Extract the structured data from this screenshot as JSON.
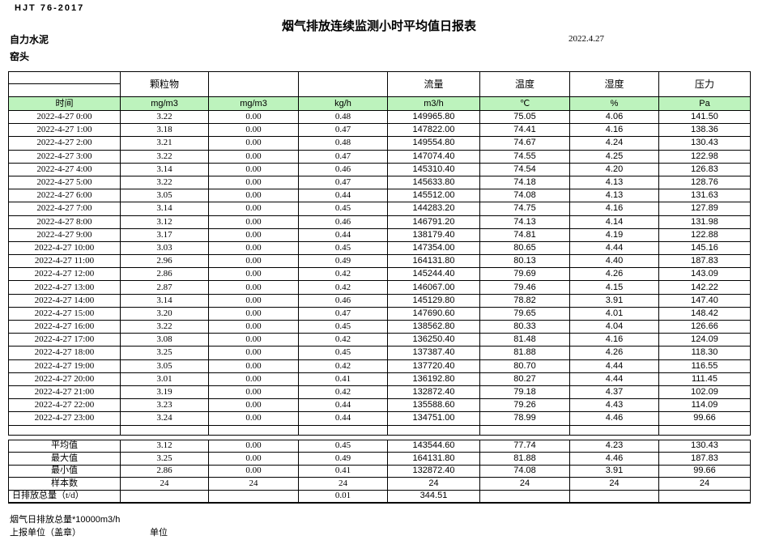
{
  "page": {
    "doc_code": "HJT 76-2017",
    "title": "烟气排放连续监测小时平均值日报表",
    "company": "自力水泥",
    "monitoring_point": "窑头",
    "date": "2022.4.27"
  },
  "colors": {
    "header_green": "#bdf3bd"
  },
  "table": {
    "group_headers": [
      "",
      "颗粒物",
      "",
      "",
      "流量",
      "温度",
      "湿度",
      "压力"
    ],
    "unit_headers": [
      "时间",
      "mg/m3",
      "mg/m3",
      "kg/h",
      "m3/h",
      "℃",
      "%",
      "Pa"
    ],
    "rows": [
      [
        "2022-4-27 0:00",
        "3.22",
        "0.00",
        "0.48",
        "149965.80",
        "75.05",
        "4.06",
        "141.50"
      ],
      [
        "2022-4-27 1:00",
        "3.18",
        "0.00",
        "0.47",
        "147822.00",
        "74.41",
        "4.16",
        "138.36"
      ],
      [
        "2022-4-27 2:00",
        "3.21",
        "0.00",
        "0.48",
        "149554.80",
        "74.67",
        "4.24",
        "130.43"
      ],
      [
        "2022-4-27 3:00",
        "3.22",
        "0.00",
        "0.47",
        "147074.40",
        "74.55",
        "4.25",
        "122.98"
      ],
      [
        "2022-4-27 4:00",
        "3.14",
        "0.00",
        "0.46",
        "145310.40",
        "74.54",
        "4.20",
        "126.83"
      ],
      [
        "2022-4-27 5:00",
        "3.22",
        "0.00",
        "0.47",
        "145633.80",
        "74.18",
        "4.13",
        "128.76"
      ],
      [
        "2022-4-27 6:00",
        "3.05",
        "0.00",
        "0.44",
        "145512.00",
        "74.08",
        "4.13",
        "131.63"
      ],
      [
        "2022-4-27 7:00",
        "3.14",
        "0.00",
        "0.45",
        "144283.20",
        "74.75",
        "4.16",
        "127.89"
      ],
      [
        "2022-4-27 8:00",
        "3.12",
        "0.00",
        "0.46",
        "146791.20",
        "74.13",
        "4.14",
        "131.98"
      ],
      [
        "2022-4-27 9:00",
        "3.17",
        "0.00",
        "0.44",
        "138179.40",
        "74.81",
        "4.19",
        "122.88"
      ],
      [
        "2022-4-27 10:00",
        "3.03",
        "0.00",
        "0.45",
        "147354.00",
        "80.65",
        "4.44",
        "145.16"
      ],
      [
        "2022-4-27 11:00",
        "2.96",
        "0.00",
        "0.49",
        "164131.80",
        "80.13",
        "4.40",
        "187.83"
      ],
      [
        "2022-4-27 12:00",
        "2.86",
        "0.00",
        "0.42",
        "145244.40",
        "79.69",
        "4.26",
        "143.09"
      ],
      [
        "2022-4-27 13:00",
        "2.87",
        "0.00",
        "0.42",
        "146067.00",
        "79.46",
        "4.15",
        "142.22"
      ],
      [
        "2022-4-27 14:00",
        "3.14",
        "0.00",
        "0.46",
        "145129.80",
        "78.82",
        "3.91",
        "147.40"
      ],
      [
        "2022-4-27 15:00",
        "3.20",
        "0.00",
        "0.47",
        "147690.60",
        "79.65",
        "4.01",
        "148.42"
      ],
      [
        "2022-4-27 16:00",
        "3.22",
        "0.00",
        "0.45",
        "138562.80",
        "80.33",
        "4.04",
        "126.66"
      ],
      [
        "2022-4-27 17:00",
        "3.08",
        "0.00",
        "0.42",
        "136250.40",
        "81.48",
        "4.16",
        "124.09"
      ],
      [
        "2022-4-27 18:00",
        "3.25",
        "0.00",
        "0.45",
        "137387.40",
        "81.88",
        "4.26",
        "118.30"
      ],
      [
        "2022-4-27 19:00",
        "3.05",
        "0.00",
        "0.42",
        "137720.40",
        "80.70",
        "4.44",
        "116.55"
      ],
      [
        "2022-4-27 20:00",
        "3.01",
        "0.00",
        "0.41",
        "136192.80",
        "80.27",
        "4.44",
        "111.45"
      ],
      [
        "2022-4-27 21:00",
        "3.19",
        "0.00",
        "0.42",
        "132872.40",
        "79.18",
        "4.37",
        "102.09"
      ],
      [
        "2022-4-27 22:00",
        "3.23",
        "0.00",
        "0.44",
        "135588.60",
        "79.26",
        "4.43",
        "114.09"
      ],
      [
        "2022-4-27 23:00",
        "3.24",
        "0.00",
        "0.44",
        "134751.00",
        "78.99",
        "4.46",
        "99.66"
      ]
    ],
    "summary_rows": [
      [
        "平均值",
        "3.12",
        "0.00",
        "0.45",
        "143544.60",
        "77.74",
        "4.23",
        "130.43"
      ],
      [
        "最大值",
        "3.25",
        "0.00",
        "0.49",
        "164131.80",
        "81.88",
        "4.46",
        "187.83"
      ],
      [
        "最小值",
        "2.86",
        "0.00",
        "0.41",
        "132872.40",
        "74.08",
        "3.91",
        "99.66"
      ],
      [
        "样本数",
        "24",
        "24",
        "24",
        "24",
        "24",
        "24",
        "24"
      ],
      [
        "日排放总量（t/d）",
        "",
        "",
        "0.01",
        "344.51",
        "",
        "",
        ""
      ]
    ]
  },
  "footer": {
    "flow_note": "烟气日排放总量*10000m3/h",
    "report_unit_label": "上报单位（盖章）",
    "unit_label": "单位"
  }
}
